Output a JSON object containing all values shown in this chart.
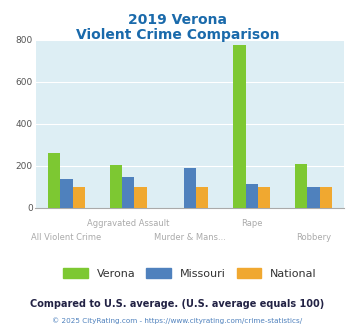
{
  "title_line1": "2019 Verona",
  "title_line2": "Violent Crime Comparison",
  "categories": [
    "All Violent Crime",
    "Aggravated Assault",
    "Murder & Mans...",
    "Rape",
    "Robbery"
  ],
  "series": {
    "Verona": [
      262,
      205,
      0,
      775,
      210
    ],
    "Missouri": [
      135,
      148,
      188,
      113,
      100
    ],
    "National": [
      100,
      100,
      100,
      100,
      100
    ]
  },
  "colors": {
    "Verona": "#7dc832",
    "Missouri": "#4f81bd",
    "National": "#f0a830"
  },
  "ylim": [
    0,
    800
  ],
  "yticks": [
    0,
    200,
    400,
    600,
    800
  ],
  "plot_bg": "#ddeef4",
  "title_color": "#1a6aab",
  "label_color": "#aaaaaa",
  "footer_text": "Compared to U.S. average. (U.S. average equals 100)",
  "copyright_text": "© 2025 CityRating.com - https://www.cityrating.com/crime-statistics/",
  "footer_color": "#222244",
  "copyright_color": "#4f81bd"
}
